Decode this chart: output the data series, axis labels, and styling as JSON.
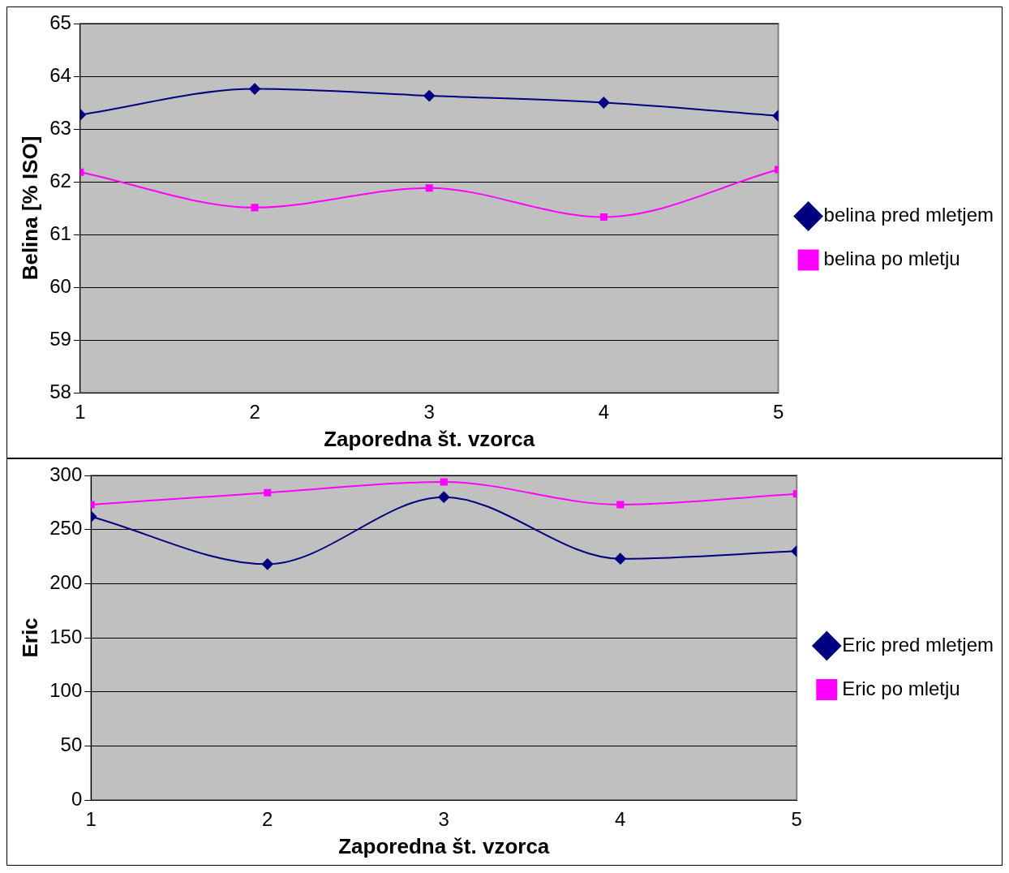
{
  "chart_data": [
    {
      "type": "line",
      "xlabel": "Zaporedna št. vzorca",
      "ylabel": "Belina [% ISO]",
      "x": [
        1,
        2,
        3,
        4,
        5
      ],
      "xlim": [
        1,
        5
      ],
      "xticks": [
        1,
        2,
        3,
        4,
        5
      ],
      "ylim": [
        58,
        65
      ],
      "yticks": [
        58,
        59,
        60,
        61,
        62,
        63,
        64,
        65
      ],
      "grid": "y",
      "legend": "right",
      "series": [
        {
          "name": "belina pred mletjem",
          "color": "#000080",
          "marker": "diamond",
          "values": [
            63.27,
            63.76,
            63.63,
            63.5,
            63.25
          ]
        },
        {
          "name": "belina po mletju",
          "color": "#ff00ff",
          "marker": "square",
          "values": [
            62.18,
            61.51,
            61.88,
            61.33,
            62.23
          ]
        }
      ]
    },
    {
      "type": "line",
      "xlabel": "Zaporedna št. vzorca",
      "ylabel": "Eric",
      "x": [
        1,
        2,
        3,
        4,
        5
      ],
      "xlim": [
        1,
        5
      ],
      "xticks": [
        1,
        2,
        3,
        4,
        5
      ],
      "ylim": [
        0,
        300
      ],
      "yticks": [
        0,
        50,
        100,
        150,
        200,
        250,
        300
      ],
      "grid": "y",
      "legend": "right",
      "series": [
        {
          "name": "Eric pred mletjem",
          "color": "#000080",
          "marker": "diamond",
          "values": [
            262,
            218,
            280,
            223,
            230
          ]
        },
        {
          "name": "Eric po mletju",
          "color": "#ff00ff",
          "marker": "square",
          "values": [
            273,
            284,
            294,
            273,
            283
          ]
        }
      ]
    }
  ]
}
